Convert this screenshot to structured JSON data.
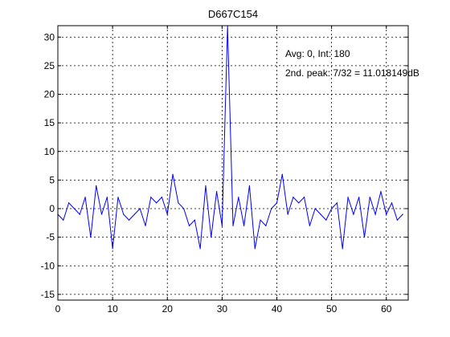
{
  "chart_data": {
    "type": "line",
    "title": "D667C154",
    "xlabel": "",
    "ylabel": "",
    "xlim": [
      0,
      64
    ],
    "ylim": [
      -16,
      32
    ],
    "grid": true,
    "x_ticks": [
      0,
      10,
      20,
      30,
      40,
      50,
      60
    ],
    "y_ticks": [
      -15,
      -10,
      -5,
      0,
      5,
      10,
      15,
      20,
      25,
      30
    ],
    "x_tick_labels": [
      "0",
      "10",
      "20",
      "30",
      "40",
      "50",
      "60"
    ],
    "y_tick_labels": [
      "-15",
      "-10",
      "-5",
      "0",
      "5",
      "10",
      "15",
      "20",
      "25",
      "30"
    ],
    "annotations": [
      "Avg: 0, Int: 180",
      "2nd. peak: 7/32 = 11.018149dB"
    ],
    "series": [
      {
        "color": "#0000ff",
        "x": [
          0,
          1,
          2,
          3,
          4,
          5,
          6,
          7,
          8,
          9,
          10,
          11,
          12,
          13,
          14,
          15,
          16,
          17,
          18,
          19,
          20,
          21,
          22,
          23,
          24,
          25,
          26,
          27,
          28,
          29,
          30,
          31,
          32,
          33,
          34,
          35,
          36,
          37,
          38,
          39,
          40,
          41,
          42,
          43,
          44,
          45,
          46,
          47,
          48,
          49,
          50,
          51,
          52,
          53,
          54,
          55,
          56,
          57,
          58,
          59,
          60,
          61,
          62,
          63
        ],
        "values": [
          -1,
          -2,
          1,
          0,
          -1,
          2,
          -5,
          4,
          -1,
          2,
          -7,
          2,
          -1,
          -2,
          -1,
          0,
          -3,
          2,
          1,
          2,
          -1,
          6,
          1,
          0,
          -3,
          -2,
          -7,
          4,
          -5,
          3,
          -3,
          32,
          -3,
          2,
          -3,
          4,
          -7,
          -2,
          -3,
          0,
          1,
          6,
          -1,
          2,
          1,
          2,
          -3,
          0,
          -1,
          -2,
          0,
          1,
          -7,
          2,
          -1,
          2,
          -5,
          2,
          -1,
          3,
          -1,
          1,
          -2,
          -1
        ]
      }
    ]
  }
}
